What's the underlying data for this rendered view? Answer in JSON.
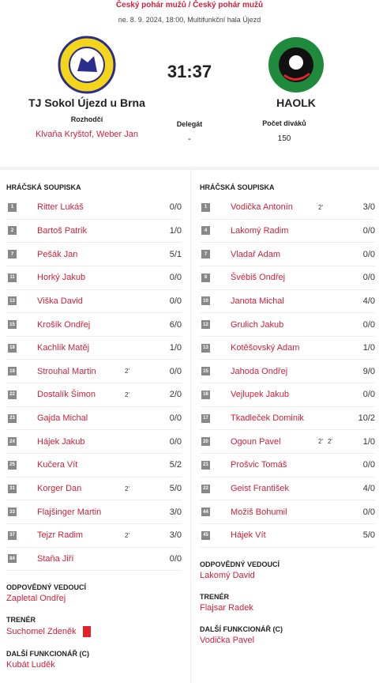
{
  "header": {
    "competition": "Český pohár mužů / Český pohár mužů",
    "info": "ne. 8. 9. 2024, 18:00, Multifunkční hala Újezd",
    "score": "31:37",
    "home": "TJ Sokol Újezd u Brna",
    "away": "HAOLK"
  },
  "officials": {
    "referees_label": "Rozhodčí",
    "referees": "Klvaňa Kryštof, Weber Jan",
    "delegate_label": "Delegát",
    "delegate": "-",
    "spectators_label": "Počet diváků",
    "spectators": "150"
  },
  "teams": [
    {
      "roster_title": "HRÁČSKÁ SOUPISKA",
      "players": [
        {
          "number": "1",
          "name": "Ritter Lukáš",
          "penalties": [],
          "goals": "0/0"
        },
        {
          "number": "2",
          "name": "Bartoš Patrik",
          "penalties": [],
          "goals": "1/0"
        },
        {
          "number": "7",
          "name": "Pešák Jan",
          "penalties": [],
          "goals": "5/1"
        },
        {
          "number": "11",
          "name": "Horký Jakub",
          "penalties": [],
          "goals": "0/0"
        },
        {
          "number": "13",
          "name": "Viška David",
          "penalties": [],
          "goals": "0/0"
        },
        {
          "number": "15",
          "name": "Krošík Ondřej",
          "penalties": [],
          "goals": "6/0"
        },
        {
          "number": "18",
          "name": "Kachlík Matěj",
          "penalties": [],
          "goals": "1/0"
        },
        {
          "number": "19",
          "name": "Strouhal Martin",
          "penalties": [
            "2'"
          ],
          "goals": "0/0"
        },
        {
          "number": "22",
          "name": "Dostalík Šimon",
          "penalties": [
            "2'"
          ],
          "goals": "2/0"
        },
        {
          "number": "23",
          "name": "Gajda Michal",
          "penalties": [],
          "goals": "0/0"
        },
        {
          "number": "24",
          "name": "Hájek Jakub",
          "penalties": [],
          "goals": "0/0"
        },
        {
          "number": "25",
          "name": "Kučera Vít",
          "penalties": [],
          "goals": "5/2"
        },
        {
          "number": "31",
          "name": "Korger Dan",
          "penalties": [
            "2'"
          ],
          "goals": "5/0"
        },
        {
          "number": "33",
          "name": "Flajšinger Martin",
          "penalties": [],
          "goals": "3/0"
        },
        {
          "number": "37",
          "name": "Tejzr Radim",
          "penalties": [
            "2'"
          ],
          "goals": "3/0"
        },
        {
          "number": "84",
          "name": "Staňa Jiří",
          "penalties": [],
          "goals": "0/0"
        }
      ],
      "staff": [
        {
          "role": "ODPOVĚDNÝ VEDOUCÍ",
          "name": "Zapletal Ondřej"
        },
        {
          "role": "TRENÉR",
          "name": "Suchomel Zdeněk"
        },
        {
          "role": "DALŠÍ FUNKCIONÁŘ (C)",
          "name": "Kubát Luděk"
        }
      ]
    },
    {
      "roster_title": "HRÁČSKÁ SOUPISKA",
      "players": [
        {
          "number": "1",
          "name": "Vodička Antonín",
          "penalties": [
            "2'"
          ],
          "goals": "3/0"
        },
        {
          "number": "4",
          "name": "Lakomý Radim",
          "penalties": [],
          "goals": "0/0"
        },
        {
          "number": "7",
          "name": "Vladař Adam",
          "penalties": [],
          "goals": "0/0"
        },
        {
          "number": "8",
          "name": "Švébiš Ondřej",
          "penalties": [],
          "goals": "0/0"
        },
        {
          "number": "10",
          "name": "Janota Michal",
          "penalties": [],
          "goals": "4/0"
        },
        {
          "number": "12",
          "name": "Grulich Jakub",
          "penalties": [],
          "goals": "0/0"
        },
        {
          "number": "13",
          "name": "Kotěšovský Adam",
          "penalties": [],
          "goals": "1/0"
        },
        {
          "number": "15",
          "name": "Jahoda Ondřej",
          "penalties": [],
          "goals": "9/0"
        },
        {
          "number": "16",
          "name": "Vejlupek Jakub",
          "penalties": [],
          "goals": "0/0"
        },
        {
          "number": "17",
          "name": "Tkadleček Dominik",
          "penalties": [],
          "goals": "10/2"
        },
        {
          "number": "20",
          "name": "Ogoun Pavel",
          "penalties": [
            "2'",
            "2'"
          ],
          "goals": "1/0"
        },
        {
          "number": "21",
          "name": "Prošvic Tomáš",
          "penalties": [],
          "goals": "0/0"
        },
        {
          "number": "22",
          "name": "Geist František",
          "penalties": [],
          "goals": "4/0"
        },
        {
          "number": "44",
          "name": "Možiš Bohumil",
          "penalties": [],
          "goals": "0/0"
        },
        {
          "number": "45",
          "name": "Hájek Vít",
          "penalties": [],
          "goals": "5/0"
        }
      ],
      "staff": [
        {
          "role": "ODPOVĚDNÝ VEDOUCÍ",
          "name": "Lakomý David"
        },
        {
          "role": "TRENÉR",
          "name": "Flajsar Radek"
        },
        {
          "role": "DALŠÍ FUNKCIONÁŘ (C)",
          "name": "Vodička Pavel"
        }
      ]
    }
  ]
}
